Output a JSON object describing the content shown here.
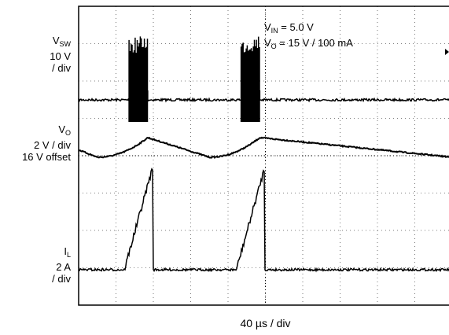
{
  "chart_data": {
    "type": "line",
    "title": "",
    "xlabel": "40 µs / div",
    "x_divisions": 10,
    "y_divisions": 8,
    "grid": true,
    "annotation": {
      "vin_main": "V",
      "vin_sub": "IN",
      "vin_value": " = 5.0 V",
      "vo_main": "V",
      "vo_sub": "O",
      "vo_value": " = 15 V / 100 mA"
    },
    "channels": [
      {
        "name": "VSW",
        "label_main": "V",
        "label_sub": "SW",
        "scale": "10 V",
        "per": "/ div"
      },
      {
        "name": "VO",
        "label_main": "V",
        "label_sub": "O",
        "scale": "2 V / div",
        "offset": "16 V offset"
      },
      {
        "name": "IL",
        "label_main": "I",
        "label_sub": "L",
        "scale": "2 A",
        "per": "/ div"
      }
    ],
    "bursts": [
      {
        "start_us": 54,
        "end_us": 74
      },
      {
        "start_us": 174,
        "end_us": 194
      }
    ],
    "period_us": 120
  }
}
